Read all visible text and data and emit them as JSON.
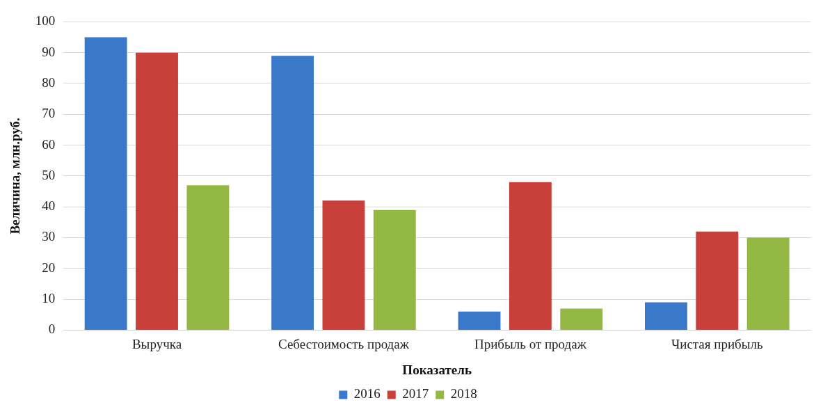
{
  "chart_data": {
    "type": "bar",
    "xlabel": "Показатель",
    "ylabel": "Величина, млн.руб.",
    "categories": [
      "Выручка",
      "Себестоимость продаж",
      "Прибыль от продаж",
      "Чистая прибыль"
    ],
    "series": [
      {
        "name": "2016",
        "color": "#3a78c9",
        "values": [
          95,
          89,
          6,
          9
        ]
      },
      {
        "name": "2017",
        "color": "#c9403b",
        "values": [
          90,
          42,
          48,
          32
        ]
      },
      {
        "name": "2018",
        "color": "#93b844",
        "values": [
          47,
          39,
          7,
          30
        ]
      }
    ],
    "ylim": [
      0,
      100
    ],
    "yticks": [
      0,
      10,
      20,
      30,
      40,
      50,
      60,
      70,
      80,
      90,
      100
    ],
    "grid": "y",
    "legend": "bottom"
  }
}
